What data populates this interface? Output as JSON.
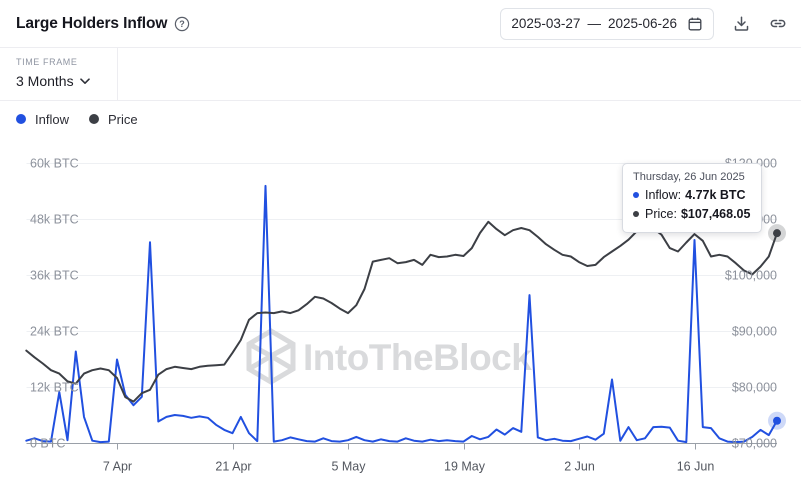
{
  "header": {
    "title": "Large Holders Inflow",
    "date_range": {
      "start": "2025-03-27",
      "separator": "—",
      "end": "2025-06-26"
    }
  },
  "controls": {
    "timeframe_label": "TIME FRAME",
    "timeframe_value": "3 Months"
  },
  "legend": [
    {
      "label": "Inflow",
      "color": "#2150E0"
    },
    {
      "label": "Price",
      "color": "#3C3F45"
    }
  ],
  "tooltip": {
    "date": "Thursday, 26 Jun 2025",
    "rows": [
      {
        "label": "Inflow:",
        "value": "4.77k BTC",
        "color": "#2150E0"
      },
      {
        "label": "Price:",
        "value": "$107,468.05",
        "color": "#3C3F45"
      }
    ]
  },
  "watermark": {
    "text": "IntoTheBlock"
  },
  "colors": {
    "inflow": "#2150E0",
    "price": "#3C3F45",
    "grid": "#eef0f3",
    "axis": "#9aa0a8",
    "y_label": "#8d929c",
    "x_label": "#53575f",
    "watermark": "#d9dadc"
  },
  "chart_data": {
    "type": "line",
    "title": "Large Holders Inflow",
    "grid": "horizontal",
    "legend_position": "top-left",
    "x_dates": [
      "2025-03-27",
      "2025-03-28",
      "2025-03-29",
      "2025-03-30",
      "2025-03-31",
      "2025-04-01",
      "2025-04-02",
      "2025-04-03",
      "2025-04-04",
      "2025-04-05",
      "2025-04-06",
      "2025-04-07",
      "2025-04-08",
      "2025-04-09",
      "2025-04-10",
      "2025-04-11",
      "2025-04-12",
      "2025-04-13",
      "2025-04-14",
      "2025-04-15",
      "2025-04-16",
      "2025-04-17",
      "2025-04-18",
      "2025-04-19",
      "2025-04-20",
      "2025-04-21",
      "2025-04-22",
      "2025-04-23",
      "2025-04-24",
      "2025-04-25",
      "2025-04-26",
      "2025-04-27",
      "2025-04-28",
      "2025-04-29",
      "2025-04-30",
      "2025-05-01",
      "2025-05-02",
      "2025-05-03",
      "2025-05-04",
      "2025-05-05",
      "2025-05-06",
      "2025-05-07",
      "2025-05-08",
      "2025-05-09",
      "2025-05-10",
      "2025-05-11",
      "2025-05-12",
      "2025-05-13",
      "2025-05-14",
      "2025-05-15",
      "2025-05-16",
      "2025-05-17",
      "2025-05-18",
      "2025-05-19",
      "2025-05-20",
      "2025-05-21",
      "2025-05-22",
      "2025-05-23",
      "2025-05-24",
      "2025-05-25",
      "2025-05-26",
      "2025-05-27",
      "2025-05-28",
      "2025-05-29",
      "2025-05-30",
      "2025-05-31",
      "2025-06-01",
      "2025-06-02",
      "2025-06-03",
      "2025-06-04",
      "2025-06-05",
      "2025-06-06",
      "2025-06-07",
      "2025-06-08",
      "2025-06-09",
      "2025-06-10",
      "2025-06-11",
      "2025-06-12",
      "2025-06-13",
      "2025-06-14",
      "2025-06-15",
      "2025-06-16",
      "2025-06-17",
      "2025-06-18",
      "2025-06-19",
      "2025-06-20",
      "2025-06-21",
      "2025-06-22",
      "2025-06-23",
      "2025-06-24",
      "2025-06-25",
      "2025-06-26"
    ],
    "series": [
      {
        "name": "Inflow",
        "axis": "left",
        "unit": "BTC",
        "color": "#2150E0",
        "values": [
          500,
          1000,
          400,
          300,
          10900,
          600,
          19600,
          5600,
          500,
          200,
          300,
          17900,
          10300,
          8100,
          9900,
          43000,
          4600,
          5600,
          6000,
          5800,
          5400,
          5700,
          5400,
          3900,
          2800,
          2100,
          5600,
          2100,
          400,
          55100,
          300,
          600,
          1200,
          800,
          400,
          300,
          1000,
          400,
          300,
          600,
          1300,
          600,
          300,
          800,
          400,
          300,
          1000,
          500,
          300,
          700,
          400,
          600,
          400,
          300,
          1500,
          800,
          1300,
          2900,
          1800,
          3200,
          2400,
          31700,
          1200,
          600,
          900,
          500,
          400,
          900,
          1400,
          700,
          2000,
          13600,
          500,
          3400,
          600,
          1000,
          3400,
          3500,
          3300,
          500,
          200,
          43500,
          3400,
          3200,
          1000,
          300,
          200,
          300,
          1300,
          2800,
          1700,
          4770
        ]
      },
      {
        "name": "Price",
        "axis": "right",
        "unit": "USD",
        "color": "#3C3F45",
        "values": [
          86500,
          85300,
          84200,
          83000,
          82400,
          81000,
          80600,
          82400,
          83000,
          83300,
          83000,
          81600,
          78200,
          77400,
          78900,
          79500,
          82200,
          83200,
          83600,
          83400,
          83200,
          83600,
          83800,
          83900,
          84000,
          86100,
          88400,
          92000,
          93200,
          93300,
          93200,
          93500,
          93200,
          93700,
          94800,
          96100,
          95800,
          95000,
          94000,
          93200,
          94600,
          97500,
          102400,
          102700,
          103000,
          102100,
          102300,
          102700,
          101800,
          103600,
          103200,
          103300,
          103600,
          103400,
          104800,
          107500,
          109500,
          108200,
          107100,
          108000,
          108400,
          108000,
          106800,
          105500,
          104500,
          103600,
          103300,
          102300,
          101600,
          101800,
          103200,
          104200,
          105200,
          106300,
          107800,
          108600,
          108300,
          107200,
          104800,
          104200,
          105800,
          107300,
          106100,
          103300,
          103600,
          103300,
          102100,
          100800,
          100100,
          101500,
          103300,
          107468.05
        ]
      }
    ],
    "left_axis": {
      "min": 0,
      "max": 60000,
      "tick_values": [
        0,
        12000,
        24000,
        36000,
        48000,
        60000
      ],
      "tick_labels": [
        "0 BTC",
        "12k BTC",
        "24k BTC",
        "36k BTC",
        "48k BTC",
        "60k BTC"
      ]
    },
    "right_axis": {
      "min": 70000,
      "max": 120000,
      "tick_values": [
        70000,
        80000,
        90000,
        100000,
        110000,
        120000
      ],
      "tick_labels": [
        "$70,000",
        "$80,000",
        "$90,000",
        "$100,000",
        "$110,000",
        "$120,000"
      ]
    },
    "x_ticks": [
      {
        "date": "2025-04-07",
        "label": "7 Apr"
      },
      {
        "date": "2025-04-21",
        "label": "21 Apr"
      },
      {
        "date": "2025-05-05",
        "label": "5 May"
      },
      {
        "date": "2025-05-19",
        "label": "19 May"
      },
      {
        "date": "2025-06-02",
        "label": "2 Jun"
      },
      {
        "date": "2025-06-16",
        "label": "16 Jun"
      }
    ],
    "highlight_last_point": true
  }
}
